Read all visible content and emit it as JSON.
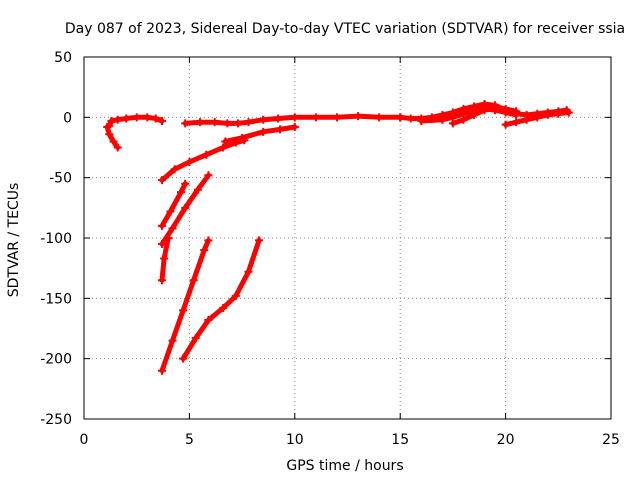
{
  "chart_data": {
    "type": "line",
    "title": "Day 087 of 2023, Sidereal Day-to-day VTEC variation (SDTVAR) for receiver ssia",
    "xlabel": "GPS time / hours",
    "ylabel": "SDTVAR / TECUs",
    "xlim": [
      0,
      25
    ],
    "ylim": [
      -250,
      50
    ],
    "x_ticks": [
      0,
      5,
      10,
      15,
      20,
      25
    ],
    "y_ticks": [
      50,
      0,
      -50,
      -100,
      -150,
      -200,
      -250
    ],
    "x_tick_labels": [
      "0",
      "5",
      "10",
      "15",
      "20",
      "25"
    ],
    "y_tick_labels": [
      "50",
      "0",
      "-50",
      "-100",
      "-150",
      "-200",
      "-250"
    ],
    "grid": true,
    "legend": "none",
    "series_color": "#ff0000",
    "series": [
      {
        "x": [
          1.1,
          1.2,
          1.4,
          1.6
        ],
        "y": [
          -8,
          -14,
          -20,
          -25
        ]
      },
      {
        "x": [
          1.2,
          1.3,
          1.6,
          2.0,
          2.5,
          3.0,
          3.4,
          3.7
        ],
        "y": [
          -7,
          -3,
          -2,
          -1,
          0,
          0,
          -1,
          -3
        ]
      },
      {
        "x": [
          4.8,
          5.5,
          6.2,
          6.8,
          7.3,
          7.8,
          8.5,
          9.2,
          10.0,
          11.0,
          12.0,
          13.0,
          14.0,
          15.0
        ],
        "y": [
          -5,
          -4,
          -4,
          -5,
          -5,
          -4,
          -2,
          -1,
          0,
          0,
          0,
          1,
          0,
          0
        ]
      },
      {
        "x": [
          15.0,
          15.5,
          16.0,
          16.5,
          17.0,
          17.5,
          18.0,
          18.5,
          19.0,
          19.5,
          20.0,
          20.5,
          21.0,
          21.5,
          22.0,
          22.5,
          22.9
        ],
        "y": [
          0,
          -1,
          -1,
          0,
          2,
          4,
          7,
          9,
          11,
          10,
          6,
          3,
          2,
          3,
          4,
          5,
          6
        ]
      },
      {
        "x": [
          16.0,
          17.0,
          17.5,
          18.0,
          18.5,
          19.0,
          19.5,
          20.0,
          20.5
        ],
        "y": [
          -3,
          -2,
          0,
          3,
          5,
          7,
          6,
          4,
          2
        ]
      },
      {
        "x": [
          17.5,
          18.0,
          18.5,
          19.0,
          19.5,
          20.0,
          20.5
        ],
        "y": [
          -5,
          -2,
          2,
          6,
          8,
          7,
          5
        ]
      },
      {
        "x": [
          20.0,
          20.5,
          21.0,
          21.5,
          22.0,
          22.5,
          23.0
        ],
        "y": [
          -6,
          -4,
          -2,
          0,
          2,
          3,
          4
        ]
      },
      {
        "x": [
          3.7,
          4.3,
          5.0,
          5.8,
          6.6,
          7.2,
          7.6
        ],
        "y": [
          -52,
          -43,
          -37,
          -31,
          -25,
          -21,
          -19
        ]
      },
      {
        "x": [
          6.7,
          7.5,
          8.5,
          9.3,
          10.0
        ],
        "y": [
          -20,
          -17,
          -12,
          -10,
          -8
        ]
      },
      {
        "x": [
          3.7,
          4.1,
          4.6,
          4.8
        ],
        "y": [
          -90,
          -78,
          -62,
          -55
        ]
      },
      {
        "x": [
          3.7,
          4.2,
          4.8,
          5.4,
          5.9
        ],
        "y": [
          -105,
          -92,
          -75,
          -60,
          -48
        ]
      },
      {
        "x": [
          3.7,
          3.8,
          4.0
        ],
        "y": [
          -135,
          -117,
          -100
        ]
      },
      {
        "x": [
          3.7,
          4.2,
          4.7,
          5.2,
          5.7,
          5.9
        ],
        "y": [
          -210,
          -185,
          -160,
          -135,
          -110,
          -102
        ]
      },
      {
        "x": [
          4.7,
          5.3,
          5.9,
          6.6,
          7.2,
          7.8,
          8.3
        ],
        "y": [
          -200,
          -183,
          -168,
          -158,
          -148,
          -128,
          -102
        ]
      }
    ]
  }
}
